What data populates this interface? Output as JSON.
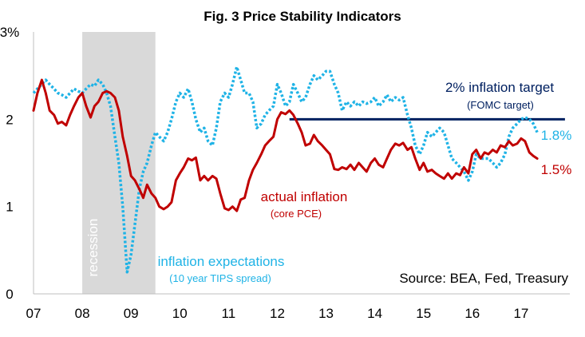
{
  "chart_data": {
    "type": "line",
    "title": "Fig. 3 Price Stability Indicators",
    "x_ticks": [
      "07",
      "08",
      "09",
      "10",
      "11",
      "12",
      "13",
      "14",
      "15",
      "16",
      "17"
    ],
    "y_ticks": [
      "3%",
      "2",
      "1",
      "0"
    ],
    "ylim": [
      0,
      3
    ],
    "xlim": [
      2007.0,
      2018.0
    ],
    "grid": false,
    "recession": {
      "label": "recession",
      "start": 2008.0,
      "end": 2009.5,
      "color": "#d9d9d9"
    },
    "target": {
      "label": "2% inflation target",
      "sublabel": "(FOMC target)",
      "value": 2.0,
      "start": 2012.25,
      "end": 2017.9,
      "color": "#002060"
    },
    "source": "Source: BEA, Fed, Treasury",
    "series": [
      {
        "name": "actual inflation",
        "sublabel": "(core PCE)",
        "end_label": "1.5%",
        "color": "#c00000",
        "style": "solid",
        "points": [
          [
            2007.0,
            2.1
          ],
          [
            2007.08,
            2.3
          ],
          [
            2007.17,
            2.45
          ],
          [
            2007.25,
            2.3
          ],
          [
            2007.33,
            2.1
          ],
          [
            2007.42,
            2.05
          ],
          [
            2007.5,
            1.95
          ],
          [
            2007.58,
            1.97
          ],
          [
            2007.67,
            1.93
          ],
          [
            2007.75,
            2.05
          ],
          [
            2007.83,
            2.15
          ],
          [
            2007.92,
            2.25
          ],
          [
            2008.0,
            2.3
          ],
          [
            2008.08,
            2.15
          ],
          [
            2008.17,
            2.02
          ],
          [
            2008.25,
            2.15
          ],
          [
            2008.33,
            2.2
          ],
          [
            2008.42,
            2.3
          ],
          [
            2008.5,
            2.32
          ],
          [
            2008.58,
            2.3
          ],
          [
            2008.67,
            2.25
          ],
          [
            2008.75,
            2.1
          ],
          [
            2008.83,
            1.8
          ],
          [
            2008.92,
            1.58
          ],
          [
            2009.0,
            1.35
          ],
          [
            2009.08,
            1.3
          ],
          [
            2009.17,
            1.2
          ],
          [
            2009.25,
            1.1
          ],
          [
            2009.33,
            1.25
          ],
          [
            2009.42,
            1.15
          ],
          [
            2009.5,
            1.1
          ],
          [
            2009.58,
            1.0
          ],
          [
            2009.67,
            0.97
          ],
          [
            2009.75,
            1.0
          ],
          [
            2009.83,
            1.05
          ],
          [
            2009.92,
            1.3
          ],
          [
            2010.0,
            1.38
          ],
          [
            2010.08,
            1.45
          ],
          [
            2010.17,
            1.55
          ],
          [
            2010.25,
            1.53
          ],
          [
            2010.33,
            1.56
          ],
          [
            2010.42,
            1.3
          ],
          [
            2010.5,
            1.35
          ],
          [
            2010.58,
            1.3
          ],
          [
            2010.67,
            1.35
          ],
          [
            2010.75,
            1.32
          ],
          [
            2010.83,
            1.15
          ],
          [
            2010.92,
            0.98
          ],
          [
            2011.0,
            0.96
          ],
          [
            2011.08,
            1.0
          ],
          [
            2011.17,
            0.95
          ],
          [
            2011.25,
            1.08
          ],
          [
            2011.33,
            1.1
          ],
          [
            2011.42,
            1.3
          ],
          [
            2011.5,
            1.42
          ],
          [
            2011.58,
            1.5
          ],
          [
            2011.67,
            1.6
          ],
          [
            2011.75,
            1.7
          ],
          [
            2011.83,
            1.75
          ],
          [
            2011.92,
            1.8
          ],
          [
            2012.0,
            2.0
          ],
          [
            2012.08,
            2.08
          ],
          [
            2012.17,
            2.06
          ],
          [
            2012.25,
            2.1
          ],
          [
            2012.33,
            2.05
          ],
          [
            2012.42,
            1.95
          ],
          [
            2012.5,
            1.85
          ],
          [
            2012.58,
            1.7
          ],
          [
            2012.67,
            1.72
          ],
          [
            2012.75,
            1.82
          ],
          [
            2012.83,
            1.75
          ],
          [
            2012.92,
            1.7
          ],
          [
            2013.0,
            1.65
          ],
          [
            2013.08,
            1.6
          ],
          [
            2013.17,
            1.43
          ],
          [
            2013.25,
            1.42
          ],
          [
            2013.33,
            1.45
          ],
          [
            2013.42,
            1.43
          ],
          [
            2013.5,
            1.48
          ],
          [
            2013.58,
            1.42
          ],
          [
            2013.67,
            1.5
          ],
          [
            2013.75,
            1.45
          ],
          [
            2013.83,
            1.4
          ],
          [
            2013.92,
            1.5
          ],
          [
            2014.0,
            1.55
          ],
          [
            2014.08,
            1.48
          ],
          [
            2014.17,
            1.45
          ],
          [
            2014.25,
            1.55
          ],
          [
            2014.33,
            1.65
          ],
          [
            2014.42,
            1.72
          ],
          [
            2014.5,
            1.7
          ],
          [
            2014.58,
            1.73
          ],
          [
            2014.67,
            1.65
          ],
          [
            2014.75,
            1.68
          ],
          [
            2014.83,
            1.55
          ],
          [
            2014.92,
            1.42
          ],
          [
            2015.0,
            1.5
          ],
          [
            2015.08,
            1.4
          ],
          [
            2015.17,
            1.42
          ],
          [
            2015.25,
            1.38
          ],
          [
            2015.33,
            1.35
          ],
          [
            2015.42,
            1.32
          ],
          [
            2015.5,
            1.38
          ],
          [
            2015.58,
            1.32
          ],
          [
            2015.67,
            1.38
          ],
          [
            2015.75,
            1.36
          ],
          [
            2015.83,
            1.45
          ],
          [
            2015.92,
            1.38
          ],
          [
            2016.0,
            1.6
          ],
          [
            2016.08,
            1.65
          ],
          [
            2016.17,
            1.55
          ],
          [
            2016.25,
            1.62
          ],
          [
            2016.33,
            1.6
          ],
          [
            2016.42,
            1.65
          ],
          [
            2016.5,
            1.62
          ],
          [
            2016.58,
            1.7
          ],
          [
            2016.67,
            1.68
          ],
          [
            2016.75,
            1.75
          ],
          [
            2016.83,
            1.7
          ],
          [
            2016.92,
            1.72
          ],
          [
            2017.0,
            1.78
          ],
          [
            2017.08,
            1.75
          ],
          [
            2017.17,
            1.62
          ],
          [
            2017.25,
            1.58
          ],
          [
            2017.33,
            1.55
          ]
        ]
      },
      {
        "name": "inflation expectations",
        "sublabel": "(10 year TIPS spread)",
        "end_label": "1.8%",
        "color": "#1fb3e6",
        "style": "dotted",
        "points": [
          [
            2007.0,
            2.3
          ],
          [
            2007.08,
            2.35
          ],
          [
            2007.17,
            2.4
          ],
          [
            2007.25,
            2.45
          ],
          [
            2007.33,
            2.4
          ],
          [
            2007.42,
            2.35
          ],
          [
            2007.5,
            2.3
          ],
          [
            2007.58,
            2.28
          ],
          [
            2007.67,
            2.25
          ],
          [
            2007.75,
            2.3
          ],
          [
            2007.83,
            2.35
          ],
          [
            2007.92,
            2.32
          ],
          [
            2008.0,
            2.3
          ],
          [
            2008.08,
            2.35
          ],
          [
            2008.17,
            2.4
          ],
          [
            2008.25,
            2.38
          ],
          [
            2008.33,
            2.45
          ],
          [
            2008.42,
            2.4
          ],
          [
            2008.5,
            2.3
          ],
          [
            2008.58,
            2.15
          ],
          [
            2008.67,
            1.8
          ],
          [
            2008.75,
            1.5
          ],
          [
            2008.83,
            1.0
          ],
          [
            2008.92,
            0.25
          ],
          [
            2009.0,
            0.45
          ],
          [
            2009.08,
            0.8
          ],
          [
            2009.17,
            1.2
          ],
          [
            2009.25,
            1.4
          ],
          [
            2009.33,
            1.5
          ],
          [
            2009.42,
            1.7
          ],
          [
            2009.5,
            1.85
          ],
          [
            2009.58,
            1.8
          ],
          [
            2009.67,
            1.75
          ],
          [
            2009.75,
            1.85
          ],
          [
            2009.83,
            2.0
          ],
          [
            2009.92,
            2.2
          ],
          [
            2010.0,
            2.3
          ],
          [
            2010.08,
            2.25
          ],
          [
            2010.17,
            2.35
          ],
          [
            2010.25,
            2.2
          ],
          [
            2010.33,
            2.0
          ],
          [
            2010.42,
            1.85
          ],
          [
            2010.5,
            1.9
          ],
          [
            2010.58,
            1.75
          ],
          [
            2010.67,
            1.7
          ],
          [
            2010.75,
            1.9
          ],
          [
            2010.83,
            2.2
          ],
          [
            2010.92,
            2.3
          ],
          [
            2011.0,
            2.25
          ],
          [
            2011.08,
            2.4
          ],
          [
            2011.17,
            2.6
          ],
          [
            2011.25,
            2.45
          ],
          [
            2011.33,
            2.3
          ],
          [
            2011.42,
            2.3
          ],
          [
            2011.5,
            2.2
          ],
          [
            2011.58,
            1.9
          ],
          [
            2011.67,
            1.95
          ],
          [
            2011.75,
            2.05
          ],
          [
            2011.83,
            2.1
          ],
          [
            2011.92,
            2.15
          ],
          [
            2012.0,
            2.4
          ],
          [
            2012.08,
            2.3
          ],
          [
            2012.17,
            2.15
          ],
          [
            2012.25,
            2.2
          ],
          [
            2012.33,
            2.4
          ],
          [
            2012.42,
            2.3
          ],
          [
            2012.5,
            2.2
          ],
          [
            2012.58,
            2.25
          ],
          [
            2012.67,
            2.4
          ],
          [
            2012.75,
            2.5
          ],
          [
            2012.83,
            2.45
          ],
          [
            2012.92,
            2.5
          ],
          [
            2013.0,
            2.55
          ],
          [
            2013.08,
            2.55
          ],
          [
            2013.17,
            2.4
          ],
          [
            2013.25,
            2.3
          ],
          [
            2013.33,
            2.1
          ],
          [
            2013.42,
            2.2
          ],
          [
            2013.5,
            2.15
          ],
          [
            2013.58,
            2.2
          ],
          [
            2013.67,
            2.15
          ],
          [
            2013.75,
            2.2
          ],
          [
            2013.83,
            2.18
          ],
          [
            2013.92,
            2.2
          ],
          [
            2014.0,
            2.25
          ],
          [
            2014.08,
            2.15
          ],
          [
            2014.17,
            2.2
          ],
          [
            2014.25,
            2.28
          ],
          [
            2014.33,
            2.2
          ],
          [
            2014.42,
            2.25
          ],
          [
            2014.5,
            2.22
          ],
          [
            2014.58,
            2.25
          ],
          [
            2014.67,
            2.05
          ],
          [
            2014.75,
            1.9
          ],
          [
            2014.83,
            1.7
          ],
          [
            2014.92,
            1.6
          ],
          [
            2015.0,
            1.7
          ],
          [
            2015.08,
            1.85
          ],
          [
            2015.17,
            1.8
          ],
          [
            2015.25,
            1.85
          ],
          [
            2015.33,
            1.9
          ],
          [
            2015.42,
            1.85
          ],
          [
            2015.5,
            1.7
          ],
          [
            2015.58,
            1.55
          ],
          [
            2015.67,
            1.5
          ],
          [
            2015.75,
            1.45
          ],
          [
            2015.83,
            1.4
          ],
          [
            2015.92,
            1.3
          ],
          [
            2016.0,
            1.4
          ],
          [
            2016.08,
            1.6
          ],
          [
            2016.17,
            1.55
          ],
          [
            2016.25,
            1.55
          ],
          [
            2016.33,
            1.55
          ],
          [
            2016.42,
            1.5
          ],
          [
            2016.5,
            1.45
          ],
          [
            2016.58,
            1.5
          ],
          [
            2016.67,
            1.6
          ],
          [
            2016.75,
            1.8
          ],
          [
            2016.83,
            1.9
          ],
          [
            2016.92,
            1.95
          ],
          [
            2017.0,
            2.0
          ],
          [
            2017.08,
            2.02
          ],
          [
            2017.17,
            2.0
          ],
          [
            2017.25,
            1.95
          ],
          [
            2017.33,
            1.85
          ]
        ]
      }
    ]
  }
}
